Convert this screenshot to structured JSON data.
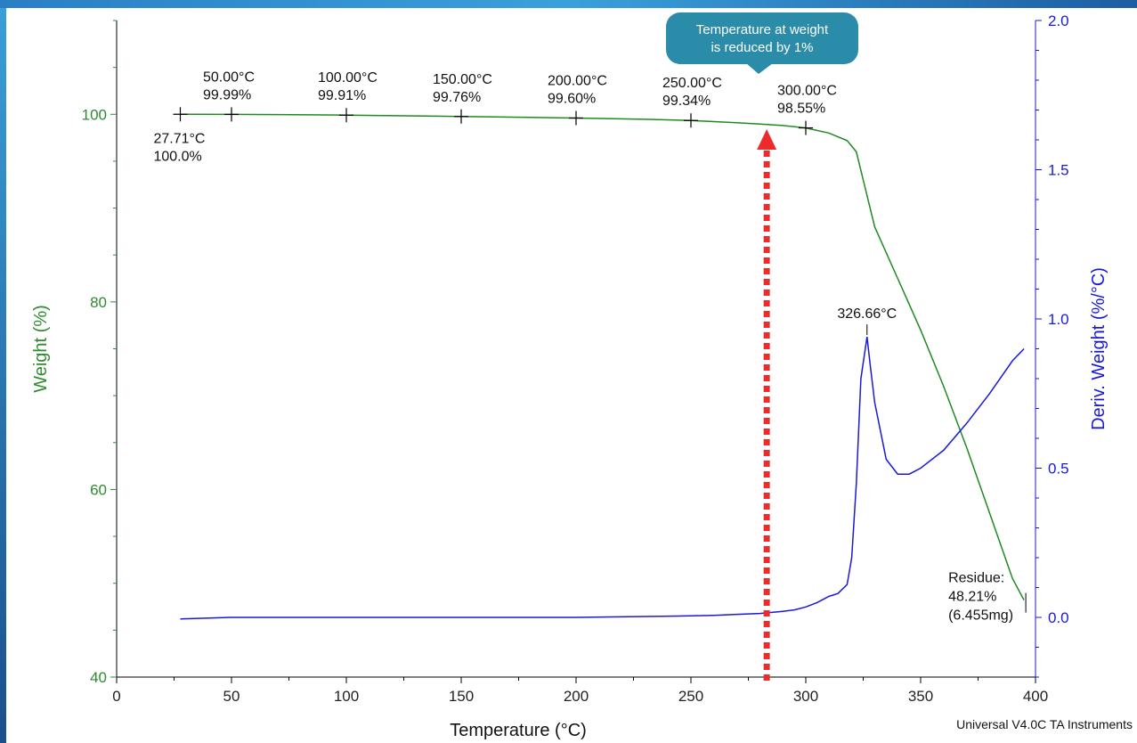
{
  "chart_data": {
    "type": "line",
    "xlabel": "Temperature (°C)",
    "ylabel": "Weight (%)",
    "y2label": "Deriv. Weight (%/°C)",
    "xlim": [
      0,
      400
    ],
    "ylim": [
      40,
      110
    ],
    "y2lim": [
      -0.2,
      2.0
    ],
    "x_ticks": [
      0,
      50,
      100,
      150,
      200,
      250,
      300,
      350,
      400
    ],
    "y_ticks": [
      40,
      60,
      80,
      100
    ],
    "y2_ticks": [
      0.0,
      0.5,
      1.0,
      1.5,
      2.0
    ],
    "colors": {
      "weight": "#1f8a1f",
      "deriv": "#1a1ad6",
      "arrow": "#ee2a2a",
      "callout": "#2a8ca8",
      "axis_left": "#2e8b2e",
      "axis_right": "#1a1ad6"
    },
    "series": [
      {
        "axis": "left",
        "x": [
          27.71,
          50,
          70,
          100,
          130,
          150,
          180,
          200,
          230,
          250,
          270,
          280,
          290,
          300,
          310,
          318,
          322,
          325,
          330,
          340,
          350,
          360,
          370,
          380,
          390,
          395
        ],
        "y": [
          100.0,
          99.99,
          99.97,
          99.91,
          99.83,
          99.76,
          99.68,
          99.6,
          99.47,
          99.34,
          99.1,
          98.95,
          98.8,
          98.55,
          98.0,
          97.2,
          96.0,
          93.0,
          88.0,
          82.5,
          77.0,
          71.0,
          64.5,
          57.5,
          50.5,
          48.21
        ]
      },
      {
        "axis": "right",
        "x": [
          27.71,
          50,
          100,
          150,
          200,
          230,
          250,
          260,
          270,
          280,
          290,
          295,
          300,
          305,
          310,
          314,
          318,
          320,
          322,
          324,
          326.66,
          328,
          330,
          335,
          340,
          345,
          350,
          360,
          370,
          380,
          390,
          395
        ],
        "y": [
          -0.005,
          0.0,
          0.0,
          0.0,
          0.0,
          0.003,
          0.005,
          0.007,
          0.01,
          0.013,
          0.02,
          0.025,
          0.035,
          0.05,
          0.07,
          0.08,
          0.11,
          0.2,
          0.45,
          0.8,
          0.94,
          0.85,
          0.72,
          0.53,
          0.48,
          0.48,
          0.5,
          0.56,
          0.65,
          0.75,
          0.86,
          0.9
        ]
      }
    ],
    "weight_labels": [
      {
        "temp_text": "27.71°C",
        "val_text": "100.0%",
        "x": 27.71,
        "y": 100.0,
        "below": true
      },
      {
        "temp_text": "50.00°C",
        "val_text": "99.99%",
        "x": 50,
        "y": 99.99,
        "below": false
      },
      {
        "temp_text": "100.00°C",
        "val_text": "99.91%",
        "x": 100,
        "y": 99.91,
        "below": false
      },
      {
        "temp_text": "150.00°C",
        "val_text": "99.76%",
        "x": 150,
        "y": 99.76,
        "below": false
      },
      {
        "temp_text": "200.00°C",
        "val_text": "99.60%",
        "x": 200,
        "y": 99.6,
        "below": false
      },
      {
        "temp_text": "250.00°C",
        "val_text": "99.34%",
        "x": 250,
        "y": 99.34,
        "below": false
      },
      {
        "temp_text": "300.00°C",
        "val_text": "98.55%",
        "x": 300,
        "y": 98.55,
        "below": false
      }
    ],
    "peak_label": "326.66°C",
    "peak": {
      "x": 326.66,
      "y": 0.94
    },
    "residue": {
      "line1": "Residue:",
      "line2": "48.21%",
      "line3": "(6.455mg)",
      "x": 395,
      "y": 48.21
    },
    "callout": {
      "line1": "Temperature at weight",
      "line2": "is reduced by 1%",
      "x": 283
    },
    "footer": "Universal V4.0C TA Instruments"
  }
}
